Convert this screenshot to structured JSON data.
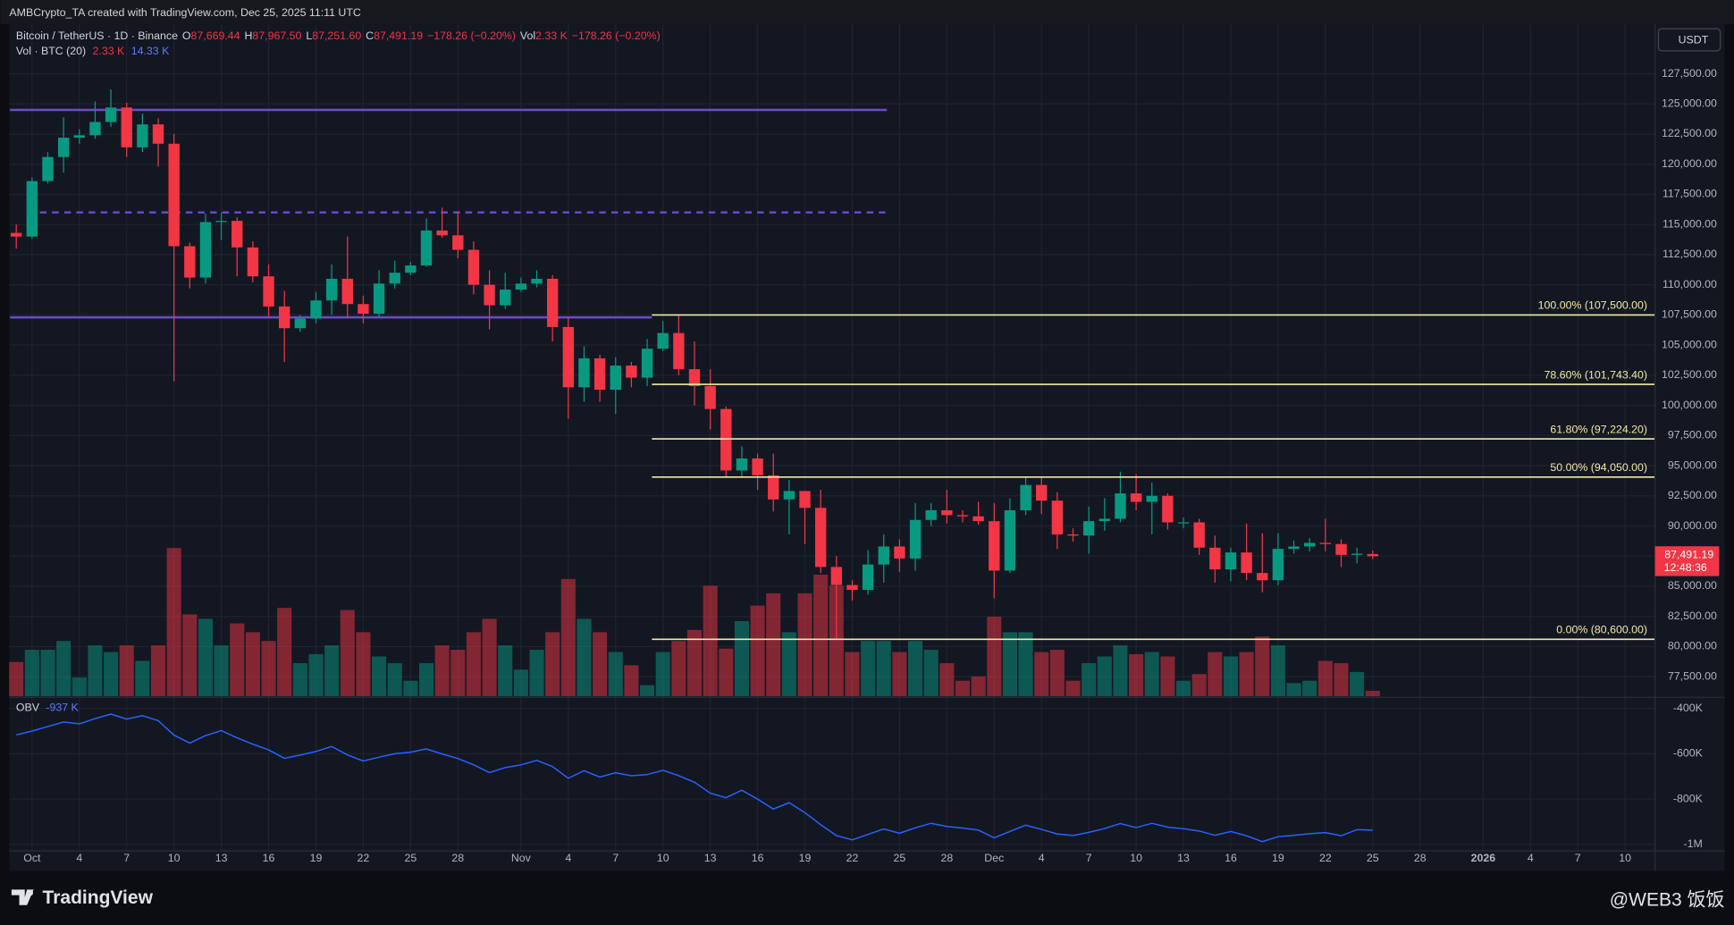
{
  "header": {
    "text": "AMBCrypto_TA created with TradingView.com, Dec 25, 2025 11:11 UTC"
  },
  "footer": {
    "brand": "TradingView",
    "watermark": "@WEB3 饭饭"
  },
  "chart_data": {
    "type": "candlestick",
    "legend": {
      "symbol": "Bitcoin / TetherUS · 1D · Binance",
      "o": "O",
      "open": "87,669.44",
      "h": "H",
      "high": "87,967.50",
      "l": "L",
      "low": "87,251.60",
      "c": "C",
      "close": "87,491.19",
      "change": "−178.26 (−0.20%)",
      "vol": "Vol",
      "vol_value": "2.33 K",
      "vol_change": "−178.26 (−0.20%)"
    },
    "currency": "USDT",
    "up_color": "#089981",
    "down_color": "#f23645",
    "open": [
      114300,
      114000,
      118600,
      120600,
      122200,
      122400,
      123500,
      124700,
      121400,
      123300,
      121700,
      113200,
      110600,
      115200,
      115300,
      113100,
      110700,
      108200,
      106400,
      107200,
      108700,
      110500,
      108400,
      107600,
      110100,
      111000,
      111600,
      114500,
      114100,
      112900,
      110000,
      108300,
      109600,
      110100,
      110500,
      106500,
      101500,
      103900,
      101300,
      103300,
      102300,
      104700,
      106000,
      103000,
      101600,
      99700,
      94600,
      95600,
      94200,
      92200,
      92900,
      91500,
      86600,
      85100,
      84700,
      86800,
      88300,
      87300,
      90500,
      91300,
      90900,
      90800,
      90400,
      86300,
      91300,
      93400,
      92100,
      89300,
      89200,
      90400,
      90600,
      92700,
      92000,
      92500,
      90300,
      90300,
      88200,
      86400,
      87800,
      86100,
      85500,
      88100,
      88300,
      88600,
      88500,
      87600,
      87669.44
    ],
    "high": [
      115000,
      118900,
      121000,
      123900,
      122900,
      125200,
      126200,
      125100,
      124200,
      123800,
      122500,
      113500,
      115900,
      116000,
      115600,
      113600,
      111700,
      109500,
      107500,
      109400,
      111700,
      114000,
      109100,
      111200,
      112000,
      111900,
      115500,
      116400,
      116100,
      113600,
      111200,
      111000,
      110600,
      111200,
      110800,
      107300,
      104900,
      104200,
      104000,
      103600,
      105500,
      107000,
      107500,
      105300,
      103000,
      99900,
      96600,
      96000,
      96000,
      93800,
      92900,
      93000,
      87500,
      85500,
      88000,
      89300,
      88900,
      91900,
      91900,
      93000,
      91300,
      92000,
      91900,
      92300,
      94100,
      94100,
      92800,
      89800,
      91600,
      92300,
      94500,
      94300,
      93600,
      92700,
      90700,
      90600,
      89200,
      88200,
      90200,
      89400,
      89400,
      88800,
      89000,
      90600,
      88900,
      88200,
      87967.5
    ],
    "low": [
      113000,
      113800,
      118400,
      119300,
      121700,
      122100,
      123100,
      120600,
      121000,
      119800,
      102000,
      109700,
      110100,
      113700,
      110700,
      110200,
      107400,
      103600,
      106100,
      106800,
      107500,
      107200,
      106800,
      107300,
      109700,
      110800,
      111500,
      113900,
      112200,
      109200,
      106300,
      108000,
      109400,
      109800,
      105300,
      98900,
      100300,
      100300,
      99300,
      101500,
      101600,
      104500,
      102500,
      100000,
      98000,
      94000,
      94000,
      93000,
      91200,
      89300,
      88500,
      86100,
      80600,
      83800,
      84300,
      85300,
      86200,
      86300,
      90000,
      90200,
      90300,
      90100,
      84000,
      86100,
      90900,
      91000,
      88100,
      88700,
      87700,
      89600,
      90300,
      91300,
      89300,
      89700,
      89800,
      87600,
      85300,
      85400,
      85500,
      84500,
      85100,
      87700,
      87900,
      87900,
      86600,
      86900,
      87251.6
    ],
    "close": [
      114000,
      118600,
      120600,
      122200,
      122400,
      123500,
      124700,
      121400,
      123300,
      121700,
      113200,
      110600,
      115200,
      115300,
      113100,
      110700,
      108200,
      106400,
      107200,
      108700,
      110500,
      108400,
      107600,
      110100,
      111000,
      111600,
      114500,
      114100,
      112900,
      110000,
      108300,
      109600,
      110100,
      110500,
      106500,
      101500,
      103900,
      101300,
      103300,
      102300,
      104700,
      106000,
      103000,
      101600,
      99700,
      94600,
      95600,
      94200,
      92200,
      92900,
      91500,
      86600,
      85100,
      84700,
      86800,
      88300,
      87300,
      90500,
      91300,
      90900,
      90800,
      90400,
      86300,
      91300,
      93400,
      92100,
      89300,
      89200,
      90400,
      90600,
      92700,
      92000,
      92500,
      90300,
      90300,
      88200,
      86400,
      87800,
      86100,
      85500,
      88100,
      88300,
      88600,
      88500,
      87600,
      87700,
      87491.19
    ],
    "last_price": {
      "label": "87,491.19",
      "countdown": "12:48:36"
    },
    "xlim": [
      -0.44,
      103.9
    ],
    "ylim": [
      75880,
      131600
    ],
    "yticks": [
      {
        "value": 77500,
        "label": "77,500.00"
      },
      {
        "value": 80000,
        "label": "80,000.00"
      },
      {
        "value": 82500,
        "label": "82,500.00"
      },
      {
        "value": 85000,
        "label": "85,000.00"
      },
      {
        "value": 87500,
        "label": "87,500.00"
      },
      {
        "value": 90000,
        "label": "90,000.00"
      },
      {
        "value": 92500,
        "label": "92,500.00"
      },
      {
        "value": 95000,
        "label": "95,000.00"
      },
      {
        "value": 97500,
        "label": "97,500.00"
      },
      {
        "value": 100000,
        "label": "100,000.00"
      },
      {
        "value": 102500,
        "label": "102,500.00"
      },
      {
        "value": 105000,
        "label": "105,000.00"
      },
      {
        "value": 107500,
        "label": "107,500.00"
      },
      {
        "value": 110000,
        "label": "110,000.00"
      },
      {
        "value": 112500,
        "label": "112,500.00"
      },
      {
        "value": 115000,
        "label": "115,000.00"
      },
      {
        "value": 117500,
        "label": "117,500.00"
      },
      {
        "value": 120000,
        "label": "120,000.00"
      },
      {
        "value": 122500,
        "label": "122,500.00"
      },
      {
        "value": 125000,
        "label": "125,000.00"
      },
      {
        "value": 127500,
        "label": "127,500.00"
      }
    ],
    "xticks": [
      {
        "value": 1,
        "label": "Oct"
      },
      {
        "value": 4,
        "label": "4"
      },
      {
        "value": 7,
        "label": "7"
      },
      {
        "value": 10,
        "label": "10"
      },
      {
        "value": 13,
        "label": "13"
      },
      {
        "value": 16,
        "label": "16"
      },
      {
        "value": 19,
        "label": "19"
      },
      {
        "value": 22,
        "label": "22"
      },
      {
        "value": 25,
        "label": "25"
      },
      {
        "value": 28,
        "label": "28"
      },
      {
        "value": 32,
        "label": "Nov"
      },
      {
        "value": 35,
        "label": "4"
      },
      {
        "value": 38,
        "label": "7"
      },
      {
        "value": 41,
        "label": "10"
      },
      {
        "value": 44,
        "label": "13"
      },
      {
        "value": 47,
        "label": "16"
      },
      {
        "value": 50,
        "label": "19"
      },
      {
        "value": 53,
        "label": "22"
      },
      {
        "value": 56,
        "label": "25"
      },
      {
        "value": 59,
        "label": "28"
      },
      {
        "value": 62,
        "label": "Dec"
      },
      {
        "value": 65,
        "label": "4"
      },
      {
        "value": 68,
        "label": "7"
      },
      {
        "value": 71,
        "label": "10"
      },
      {
        "value": 74,
        "label": "13"
      },
      {
        "value": 77,
        "label": "16"
      },
      {
        "value": 80,
        "label": "19"
      },
      {
        "value": 83,
        "label": "22"
      },
      {
        "value": 86,
        "label": "25"
      },
      {
        "value": 89,
        "label": "28"
      },
      {
        "value": 93,
        "label": "2026"
      },
      {
        "value": 96,
        "label": "4"
      },
      {
        "value": 99,
        "label": "7"
      },
      {
        "value": 102,
        "label": "10"
      }
    ],
    "grid": true,
    "levels": [
      {
        "value": 124500,
        "color": "#6d4bd1",
        "style": "solid"
      },
      {
        "value": 116000,
        "color": "#6d4bd1",
        "style": "dashed"
      },
      {
        "value": 107300,
        "color": "#6d4bd1",
        "style": "solid"
      }
    ],
    "fib": {
      "color": "#f3eaa6",
      "levels": [
        {
          "value": 107500,
          "label": "100.00% (107,500.00)"
        },
        {
          "value": 101743.4,
          "label": "78.60% (101,743.40)"
        },
        {
          "value": 97224.2,
          "label": "61.80% (97,224.20)"
        },
        {
          "value": 94050,
          "label": "50.00% (94,050.00)"
        },
        {
          "value": 80600,
          "label": "0.00% (80,600.00)"
        }
      ]
    },
    "volume": {
      "name": "Vol · BTC (20)",
      "last_label": "2.33 K",
      "ma_label": "14.33 K",
      "ma_color": "#2962ff",
      "ylim": [
        0,
        290600
      ],
      "values": [
        14800,
        20100,
        20100,
        23900,
        8100,
        22000,
        19100,
        22000,
        15300,
        22000,
        64100,
        35400,
        33500,
        22000,
        31500,
        27700,
        23900,
        38200,
        14300,
        18200,
        22000,
        37300,
        27700,
        17200,
        14300,
        6700,
        14300,
        22000,
        20100,
        27700,
        33500,
        22000,
        11500,
        20100,
        27700,
        50700,
        33500,
        27700,
        19100,
        13400,
        4800,
        19100,
        23900,
        28700,
        47800,
        20600,
        32500,
        39200,
        44500,
        27700,
        44500,
        52600,
        47800,
        19100,
        23900,
        23900,
        19100,
        23900,
        20100,
        14300,
        6700,
        8600,
        34400,
        27700,
        27700,
        19100,
        20100,
        6700,
        14300,
        17200,
        22000,
        18200,
        19100,
        17200,
        6700,
        9600,
        19100,
        17200,
        19100,
        25800,
        22000,
        5700,
        6700,
        15300,
        14300,
        10500,
        2330
      ]
    },
    "obv": {
      "name": "OBV",
      "last_label": "-937 K",
      "color": "#2962ff",
      "ylim": [
        -1029000,
        -356000
      ],
      "yticks": [
        {
          "value": -400000,
          "label": "-400K"
        },
        {
          "value": -600000,
          "label": "-600K"
        },
        {
          "value": -800000,
          "label": "-800K"
        },
        {
          "value": -1000000,
          "label": "-1M"
        }
      ],
      "values": [
        -517000,
        -500000,
        -480000,
        -460000,
        -468000,
        -445000,
        -425000,
        -447000,
        -432000,
        -454000,
        -518000,
        -553000,
        -520000,
        -498000,
        -530000,
        -558000,
        -583000,
        -620000,
        -606000,
        -590000,
        -568000,
        -605000,
        -632000,
        -615000,
        -600000,
        -593000,
        -579000,
        -601000,
        -621000,
        -649000,
        -683000,
        -661000,
        -649000,
        -629000,
        -657000,
        -708000,
        -675000,
        -703000,
        -684000,
        -697000,
        -692000,
        -673000,
        -697000,
        -726000,
        -774000,
        -794000,
        -761000,
        -800000,
        -844000,
        -816000,
        -860000,
        -913000,
        -961000,
        -980000,
        -956000,
        -932000,
        -951000,
        -927000,
        -907000,
        -921000,
        -928000,
        -937000,
        -971000,
        -943000,
        -915000,
        -934000,
        -954000,
        -961000,
        -947000,
        -930000,
        -908000,
        -926000,
        -907000,
        -924000,
        -931000,
        -941000,
        -960000,
        -943000,
        -962000,
        -988000,
        -966000,
        -960000,
        -953000,
        -948000,
        -962000,
        -935000,
        -937000
      ]
    }
  }
}
